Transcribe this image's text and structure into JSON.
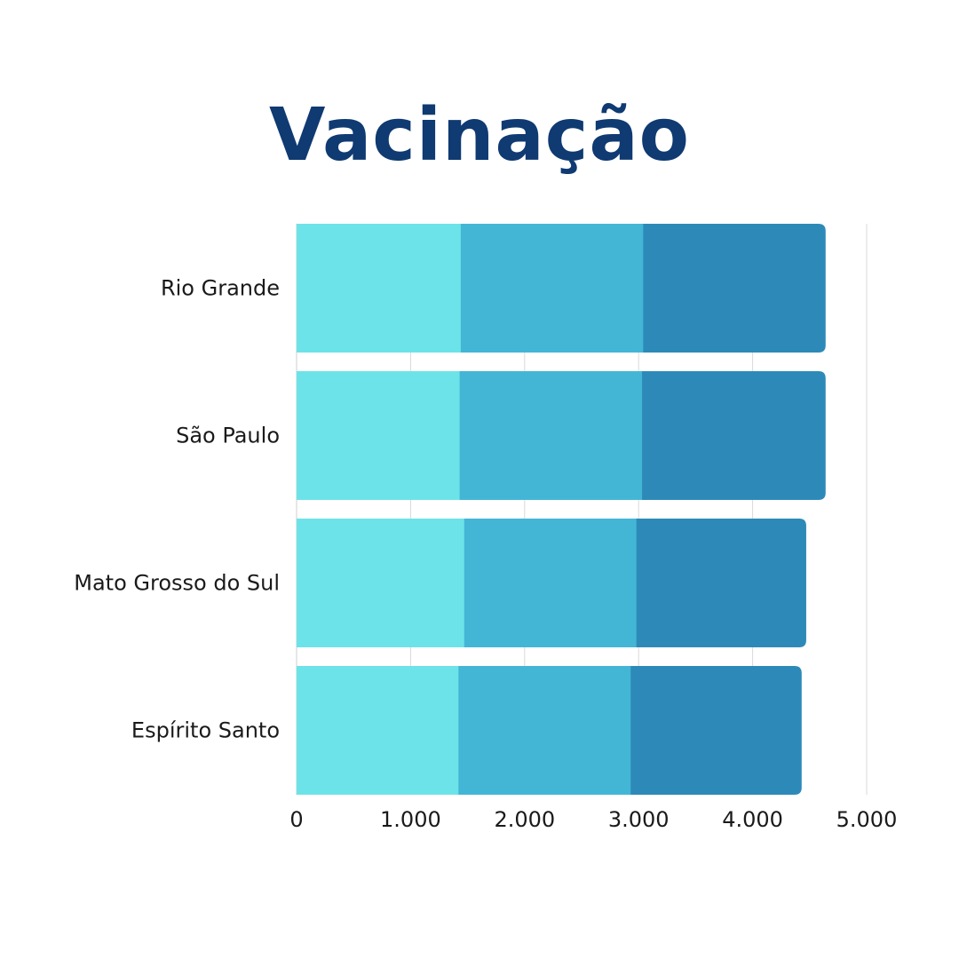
{
  "chart_data": {
    "type": "bar",
    "orientation": "horizontal",
    "stacked": true,
    "title": "Vacinação",
    "categories": [
      "Rio Grande",
      "São Paulo",
      "Mato Grosso do Sul",
      "Espírito Santo"
    ],
    "series": [
      {
        "color": "#6ce3e8",
        "values": [
          1440,
          1430,
          1470,
          1420
        ]
      },
      {
        "color": "#43b6d6",
        "values": [
          1600,
          1600,
          1510,
          1510
        ]
      },
      {
        "color": "#2d8ab8",
        "values": [
          1600,
          1610,
          1490,
          1500
        ]
      }
    ],
    "xlim": [
      0,
      5000
    ],
    "xticks": [
      0,
      1000,
      2000,
      3000,
      4000,
      5000
    ],
    "xtick_labels": [
      "0",
      "1.000",
      "2.000",
      "3.000",
      "4.000",
      "5.000"
    ],
    "grid": true,
    "legend": "none"
  },
  "colors": {
    "title": "#0f3a72",
    "grid": "#d9d9d9"
  }
}
